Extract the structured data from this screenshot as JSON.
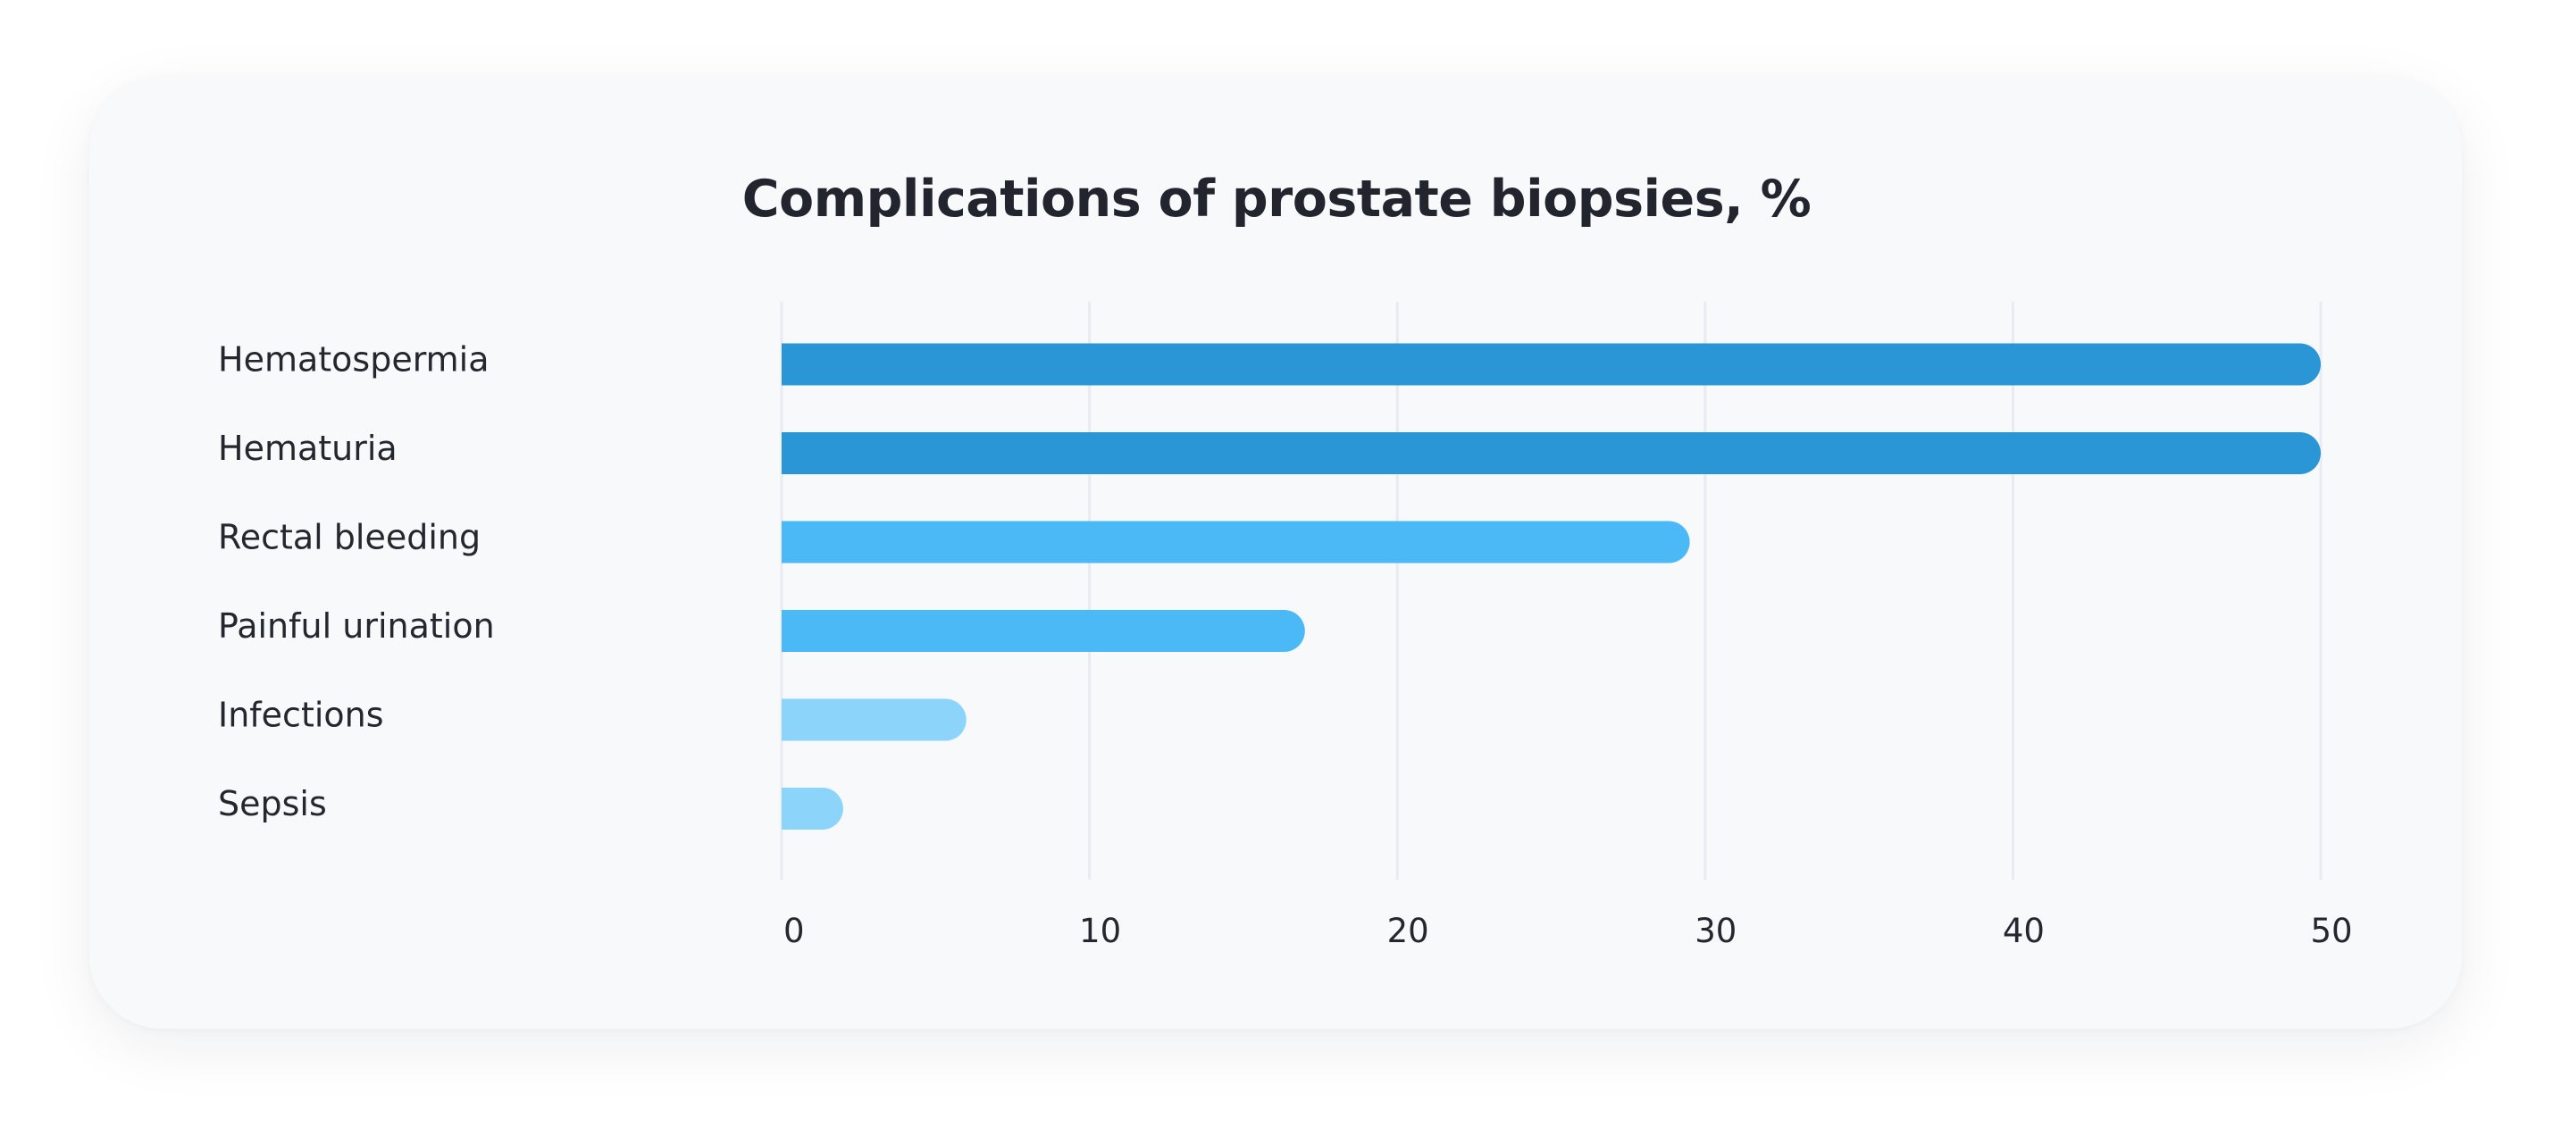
{
  "chart_data": {
    "type": "bar",
    "orientation": "horizontal",
    "title": "Complications of prostate biopsies, %",
    "xlabel": "",
    "ylabel": "",
    "categories": [
      "Hematospermia",
      "Hematuria",
      "Rectal bleeding",
      "Painful urination",
      "Infections",
      "Sepsis"
    ],
    "values": [
      50,
      50,
      29.5,
      17,
      6,
      2
    ],
    "xlim": [
      0,
      50
    ],
    "ticks": [
      "0",
      "10",
      "20",
      "30",
      "40",
      "50"
    ],
    "tick_values": [
      0,
      10,
      20,
      30,
      40,
      50
    ],
    "grid": true,
    "legend": "none",
    "colors": [
      "#2a96d5",
      "#2a96d5",
      "#4ab9f6",
      "#4ab9f6",
      "#8dd4fb",
      "#8dd4fb"
    ],
    "gridline_color": "#e8ebef",
    "background_color": "#f7f9fb"
  }
}
